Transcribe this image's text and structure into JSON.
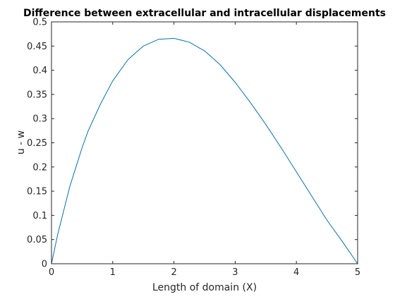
{
  "chart_data": {
    "type": "line",
    "title": "Difference between extracellular and intracellular displacements",
    "xlabel": "Length of domain (X)",
    "ylabel": "u - w",
    "xlim": [
      0,
      5
    ],
    "ylim": [
      0,
      0.5
    ],
    "xticks": [
      0,
      1,
      2,
      3,
      4,
      5
    ],
    "xtick_labels": [
      "0",
      "1",
      "2",
      "3",
      "4",
      "5"
    ],
    "yticks": [
      0,
      0.05,
      0.1,
      0.15,
      0.2,
      0.25,
      0.3,
      0.35,
      0.4,
      0.45,
      0.5
    ],
    "ytick_labels": [
      "0",
      "0.05",
      "0.1",
      "0.15",
      "0.2",
      "0.25",
      "0.3",
      "0.35",
      "0.4",
      "0.45",
      "0.5"
    ],
    "grid": false,
    "series": [
      {
        "color": "#0072bd",
        "x": [
          0,
          0.1,
          0.2,
          0.3,
          0.4,
          0.5,
          0.6,
          0.8,
          1.0,
          1.25,
          1.5,
          1.75,
          2.0,
          2.25,
          2.5,
          2.75,
          3.0,
          3.25,
          3.5,
          3.75,
          4.0,
          4.25,
          4.5,
          4.75,
          5.0
        ],
        "y": [
          0,
          0.06,
          0.11,
          0.16,
          0.2,
          0.24,
          0.275,
          0.33,
          0.378,
          0.422,
          0.45,
          0.464,
          0.466,
          0.458,
          0.44,
          0.412,
          0.375,
          0.333,
          0.288,
          0.24,
          0.19,
          0.14,
          0.09,
          0.046,
          0.0
        ]
      }
    ]
  }
}
